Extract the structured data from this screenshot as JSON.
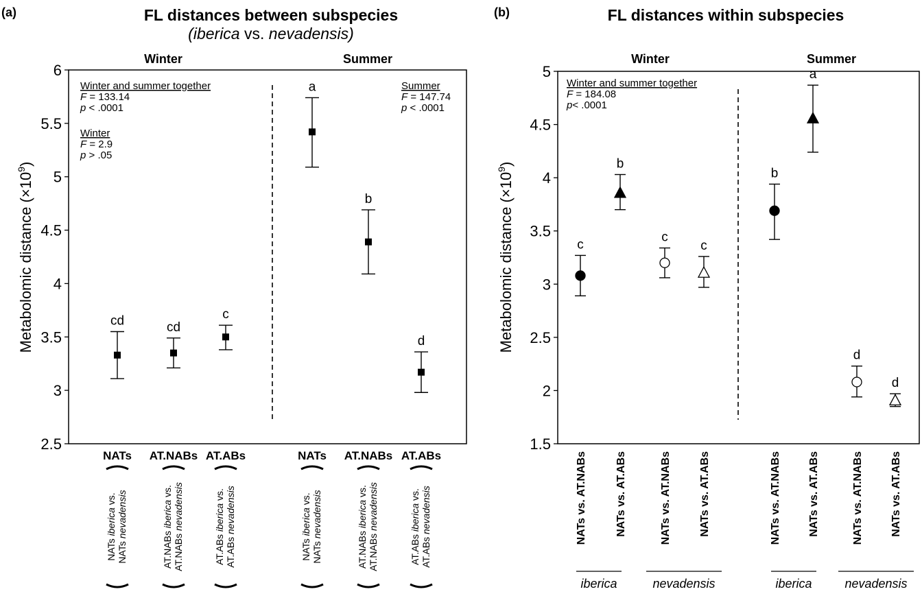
{
  "panel_a": {
    "label": "(a)",
    "title_line1": "FL distances between subspecies",
    "title_line2_open": "(",
    "title_line2_sub1": "iberica",
    "title_line2_vs": " vs. ",
    "title_line2_sub2": "nevadensis",
    "title_line2_close": ")",
    "season_winter": "Winter",
    "season_summer": "Summer",
    "stats_together_label": "Winter and summer together",
    "stats_together_f": " = 133.14",
    "stats_together_p": " < .0001",
    "stats_winter_label": "Winter",
    "stats_winter_f": " = 2.9",
    "stats_winter_p": " > .05",
    "stats_summer_label": "Summer",
    "stats_summer_f": " = 147.74",
    "stats_summer_p": " < .0001",
    "f_symbol": "F",
    "p_symbol": "p",
    "rotated_labels": [
      {
        "line1_a": "NATs ",
        "line1_it": "iberica",
        "line1_b": "  vs.",
        "line2_a": "NATs ",
        "line2_it": "nevadensis"
      },
      {
        "line1_a": "AT.NABs ",
        "line1_it": "iberica",
        "line1_b": "  vs.",
        "line2_a": "AT.NABs ",
        "line2_it": "nevadensis"
      },
      {
        "line1_a": "AT.ABs ",
        "line1_it": "iberica",
        "line1_b": "  vs.",
        "line2_a": "AT.ABs ",
        "line2_it": "nevadensis"
      },
      {
        "line1_a": "NATs ",
        "line1_it": "iberica",
        "line1_b": "  vs.",
        "line2_a": "NATs ",
        "line2_it": "nevadensis"
      },
      {
        "line1_a": "AT.NABs ",
        "line1_it": "iberica",
        "line1_b": "  vs.",
        "line2_a": "AT.NABs ",
        "line2_it": "nevadensis"
      },
      {
        "line1_a": "AT.ABs ",
        "line1_it": "iberica",
        "line1_b": "  vs.",
        "line2_a": "AT.ABs ",
        "line2_it": "nevadensis"
      }
    ]
  },
  "panel_b": {
    "label": "(b)",
    "title": "FL distances within subspecies",
    "season_winter": "Winter",
    "season_summer": "Summer",
    "stats_together_label": "Winter and summer together",
    "stats_together_f": " = 184.08",
    "stats_together_p": "< .0001",
    "f_symbol": "F",
    "p_symbol": "p",
    "group_labels": [
      "iberica",
      "nevadensis",
      "iberica",
      "nevadensis"
    ]
  },
  "chart_data": [
    {
      "type": "scatter",
      "panel": "a",
      "title": "FL distances between subspecies (iberica vs. nevadensis)",
      "ylabel": "Metabolomic distance (×10",
      "ylabel_sup": "9",
      "ylabel_close": ")",
      "ylim": [
        2.5,
        6
      ],
      "yticks": [
        "2.5",
        "3",
        "3.5",
        "4",
        "4.5",
        "5",
        "5.5",
        "6"
      ],
      "categories": [
        "NATs",
        "AT.NABs",
        "AT.ABs",
        "NATs",
        "AT.NABs",
        "AT.ABs"
      ],
      "season": [
        "Winter",
        "Winter",
        "Winter",
        "Summer",
        "Summer",
        "Summer"
      ],
      "values": [
        3.33,
        3.35,
        3.5,
        5.42,
        4.39,
        3.17
      ],
      "err_low": [
        3.11,
        3.21,
        3.38,
        5.09,
        4.09,
        2.98
      ],
      "err_high": [
        3.55,
        3.49,
        3.61,
        5.74,
        4.69,
        3.36
      ],
      "letters": [
        "cd",
        "cd",
        "c",
        "a",
        "b",
        "d"
      ],
      "marker": "square",
      "color": "#000000"
    },
    {
      "type": "scatter",
      "panel": "b",
      "title": "FL distances within subspecies",
      "ylabel": "Metabolomic distance (×10",
      "ylabel_sup": "9",
      "ylabel_close": ")",
      "ylim": [
        1.5,
        5
      ],
      "yticks": [
        "1.5",
        "2",
        "2.5",
        "3",
        "3.5",
        "4",
        "4.5",
        "5"
      ],
      "categories": [
        "NATs vs. AT.NABs",
        "NATs vs. AT.ABs",
        "NATs vs. AT.NABs",
        "NATs vs. AT.ABs",
        "NATs vs. AT.NABs",
        "NATs vs. AT.ABs",
        "NATs vs. AT.NABs",
        "NATs vs. AT.ABs"
      ],
      "season": [
        "Winter",
        "Winter",
        "Winter",
        "Winter",
        "Summer",
        "Summer",
        "Summer",
        "Summer"
      ],
      "subspecies": [
        "iberica",
        "iberica",
        "nevadensis",
        "nevadensis",
        "iberica",
        "iberica",
        "nevadensis",
        "nevadensis"
      ],
      "values": [
        3.08,
        3.86,
        3.2,
        3.11,
        3.69,
        4.56,
        2.08,
        1.91
      ],
      "err_low": [
        2.89,
        3.7,
        3.06,
        2.97,
        3.42,
        4.24,
        1.94,
        1.85
      ],
      "err_high": [
        3.27,
        4.03,
        3.34,
        3.26,
        3.94,
        4.87,
        2.23,
        1.97
      ],
      "letters": [
        "c",
        "b",
        "c",
        "c",
        "b",
        "a",
        "d",
        "d"
      ],
      "markers": [
        "circle-filled",
        "triangle-filled",
        "circle-open",
        "triangle-open",
        "circle-filled",
        "triangle-filled",
        "circle-open",
        "triangle-open"
      ],
      "color": "#000000"
    }
  ]
}
